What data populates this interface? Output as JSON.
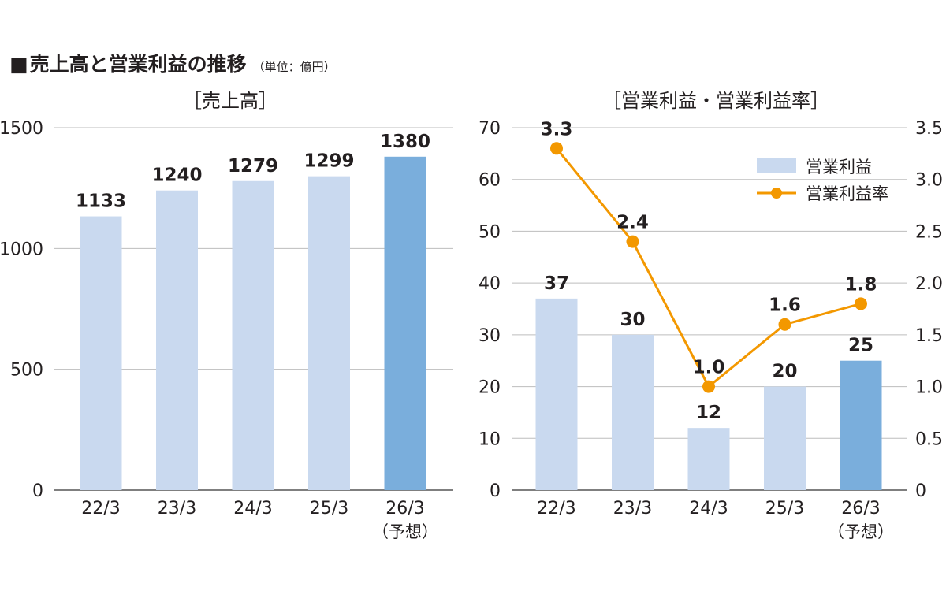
{
  "header": {
    "square": "■",
    "title": "売上高と営業利益の推移",
    "unit": "（単位：億円）"
  },
  "colors": {
    "bar": "#c9d9ef",
    "bar_forecast": "#7aaedc",
    "line": "#f39800",
    "grid": "#bdbdbd",
    "axis": "#555555",
    "text": "#231f20"
  },
  "chart_data": [
    {
      "type": "bar",
      "title": "［売上高］",
      "categories": [
        "22/3",
        "23/3",
        "24/3",
        "25/3",
        "26/3"
      ],
      "category_sublabels": [
        "",
        "",
        "",
        "",
        "（予想）"
      ],
      "values": [
        1133,
        1240,
        1279,
        1299,
        1380
      ],
      "value_labels": [
        "1133",
        "1240",
        "1279",
        "1299",
        "1380"
      ],
      "forecast_index": 4,
      "ylim": [
        0,
        1500
      ],
      "yticks": [
        "0",
        "500",
        "1000",
        "1500"
      ],
      "grid": true,
      "xlabel": "",
      "ylabel": ""
    },
    {
      "type": "bar+line",
      "title": "［営業利益・営業利益率］",
      "categories": [
        "22/3",
        "23/3",
        "24/3",
        "25/3",
        "26/3"
      ],
      "category_sublabels": [
        "",
        "",
        "",
        "",
        "（予想）"
      ],
      "series": [
        {
          "name": "営業利益",
          "type": "bar",
          "axis": "left",
          "values": [
            37,
            30,
            12,
            20,
            25
          ],
          "value_labels": [
            "37",
            "30",
            "12",
            "20",
            "25"
          ]
        },
        {
          "name": "営業利益率",
          "type": "line",
          "axis": "right",
          "values": [
            3.3,
            2.4,
            1.0,
            1.6,
            1.8
          ],
          "value_labels": [
            "3.3",
            "2.4",
            "1.0",
            "1.6",
            "1.8"
          ]
        }
      ],
      "forecast_index": 4,
      "ylim": [
        0,
        70
      ],
      "yticks": [
        "0",
        "10",
        "20",
        "30",
        "40",
        "50",
        "60",
        "70"
      ],
      "y2lim": [
        0,
        3.5
      ],
      "y2ticks": [
        "0",
        "0.5",
        "1.0",
        "1.5",
        "2.0",
        "2.5",
        "3.0",
        "3.5"
      ],
      "legend": "top-right",
      "grid": true
    }
  ]
}
